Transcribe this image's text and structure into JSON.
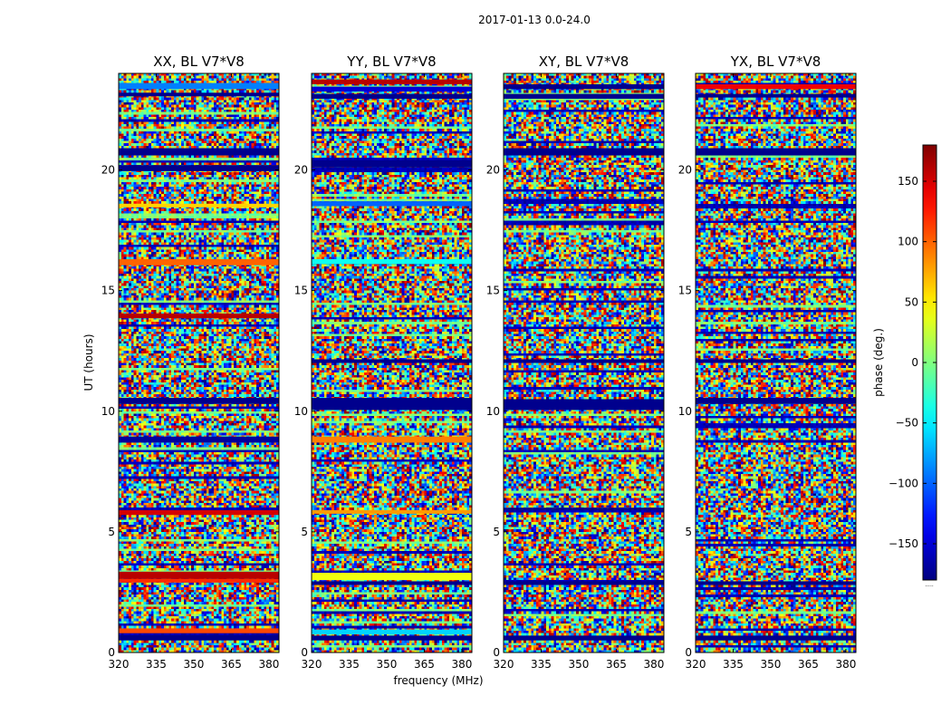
{
  "chart_data": {
    "type": "heatmap",
    "suptitle": "2017-01-13 0.0-24.0",
    "xlabel": "frequency (MHz)",
    "ylabel": "UT (hours)",
    "xlim": [
      320,
      384
    ],
    "ylim": [
      0,
      24
    ],
    "xticks": [
      320,
      335,
      350,
      365,
      380
    ],
    "yticks": [
      0,
      5,
      10,
      15,
      20
    ],
    "panels": [
      {
        "title": "XX, BL V7*V8",
        "bands": [
          {
            "t0": 0.5,
            "t1": 0.72,
            "phase": -175
          },
          {
            "t0": 0.8,
            "t1": 1.0,
            "phase": 110
          },
          {
            "t0": 2.9,
            "t1": 3.05,
            "phase": 120
          },
          {
            "t0": 3.05,
            "t1": 3.35,
            "phase": 160
          },
          {
            "t0": 5.7,
            "t1": 5.9,
            "phase": 150
          },
          {
            "t0": 8.7,
            "t1": 8.95,
            "phase": -170
          },
          {
            "t0": 10.3,
            "t1": 10.55,
            "phase": -175
          },
          {
            "t0": 13.85,
            "t1": 14.05,
            "phase": 160
          },
          {
            "t0": 16.05,
            "t1": 16.3,
            "phase": 100
          },
          {
            "t0": 18.45,
            "t1": 18.6,
            "phase": 60
          },
          {
            "t0": 19.95,
            "t1": 20.2,
            "phase": -175
          },
          {
            "t0": 20.6,
            "t1": 20.9,
            "phase": -175
          },
          {
            "t0": 23.05,
            "t1": 23.2,
            "phase": -175
          },
          {
            "t0": 23.35,
            "t1": 23.6,
            "phase": -90
          }
        ]
      },
      {
        "title": "YY, BL V7*V8",
        "bands": [
          {
            "t0": 0.5,
            "t1": 0.7,
            "phase": -175
          },
          {
            "t0": 0.75,
            "t1": 0.95,
            "phase": -60
          },
          {
            "t0": 2.8,
            "t1": 2.95,
            "phase": -175
          },
          {
            "t0": 3.0,
            "t1": 3.3,
            "phase": 40
          },
          {
            "t0": 5.75,
            "t1": 5.9,
            "phase": 80
          },
          {
            "t0": 8.7,
            "t1": 8.95,
            "phase": 90
          },
          {
            "t0": 10.05,
            "t1": 10.55,
            "phase": -175
          },
          {
            "t0": 12.0,
            "t1": 12.15,
            "phase": -175
          },
          {
            "t0": 16.1,
            "t1": 16.3,
            "phase": -40
          },
          {
            "t0": 18.5,
            "t1": 18.7,
            "phase": -100
          },
          {
            "t0": 20.1,
            "t1": 20.4,
            "phase": -175
          },
          {
            "t0": 22.95,
            "t1": 23.15,
            "phase": -175
          },
          {
            "t0": 23.25,
            "t1": 23.45,
            "phase": -150
          },
          {
            "t0": 23.55,
            "t1": 23.75,
            "phase": 160
          }
        ]
      },
      {
        "title": "XY, BL V7*V8",
        "bands": [
          {
            "t0": 0.5,
            "t1": 0.7,
            "phase": -175
          },
          {
            "t0": 2.8,
            "t1": 2.95,
            "phase": -175
          },
          {
            "t0": 5.9,
            "t1": 6.0,
            "phase": -175
          },
          {
            "t0": 10.05,
            "t1": 10.5,
            "phase": -175
          },
          {
            "t0": 12.0,
            "t1": 12.15,
            "phase": -175
          },
          {
            "t0": 20.6,
            "t1": 20.9,
            "phase": -175
          },
          {
            "t0": 22.95,
            "t1": 23.15,
            "phase": -175
          },
          {
            "t0": 23.35,
            "t1": 23.55,
            "phase": -175
          }
        ]
      },
      {
        "title": "YX, BL V7*V8",
        "bands": [
          {
            "t0": 0.5,
            "t1": 0.7,
            "phase": -175
          },
          {
            "t0": 2.8,
            "t1": 2.95,
            "phase": -175
          },
          {
            "t0": 10.3,
            "t1": 10.55,
            "phase": -175
          },
          {
            "t0": 12.0,
            "t1": 12.15,
            "phase": -175
          },
          {
            "t0": 20.6,
            "t1": 20.9,
            "phase": -175
          },
          {
            "t0": 23.0,
            "t1": 23.15,
            "phase": -175
          },
          {
            "t0": 23.35,
            "t1": 23.55,
            "phase": 140
          }
        ]
      }
    ],
    "colorbar": {
      "label": "phase (deg.)",
      "range": [
        -180,
        180
      ],
      "ticks": [
        150,
        100,
        50,
        0,
        -50,
        -100,
        -150
      ],
      "tick_labels": [
        "150",
        "100",
        "50",
        "0",
        "−50",
        "−100",
        "−150"
      ],
      "colormap": "jet",
      "footnote": "....."
    },
    "colormap_stops": [
      "#00007f",
      "#0000ff",
      "#007fff",
      "#00ffff",
      "#7fff7f",
      "#ffff00",
      "#ff7f00",
      "#ff0000",
      "#7f0000"
    ]
  }
}
